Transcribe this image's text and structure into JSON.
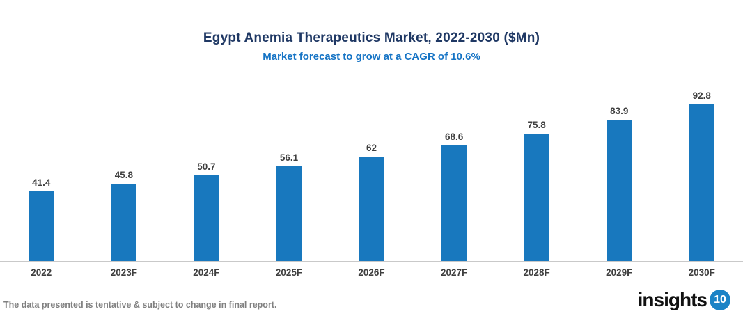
{
  "chart_data": {
    "type": "bar",
    "title": "Egypt Anemia Therapeutics Market, 2022-2030 ($Mn)",
    "subtitle": "Market forecast to grow at a CAGR of 10.6%",
    "categories": [
      "2022",
      "2023F",
      "2024F",
      "2025F",
      "2026F",
      "2027F",
      "2028F",
      "2029F",
      "2030F"
    ],
    "values": [
      41.4,
      45.8,
      50.7,
      56.1,
      62,
      68.6,
      75.8,
      83.9,
      92.8
    ],
    "value_labels": [
      "41.4",
      "45.8",
      "50.7",
      "56.1",
      "62",
      "68.6",
      "75.8",
      "83.9",
      "92.8"
    ],
    "xlabel": "",
    "ylabel": "",
    "ylim": [
      0,
      108
    ],
    "grid": false,
    "legend": "none",
    "bar_color": "#1878BE",
    "axis_line_color": "#C9C9C9",
    "title_color": "#1F3864",
    "subtitle_color": "#1674C5",
    "label_color": "#3F3F3F"
  },
  "footer": {
    "disclaimer": "The data presented is tentative & subject to change in final report."
  },
  "branding": {
    "logo_text": "insights",
    "logo_badge": "10",
    "badge_color": "#1B83C6"
  }
}
